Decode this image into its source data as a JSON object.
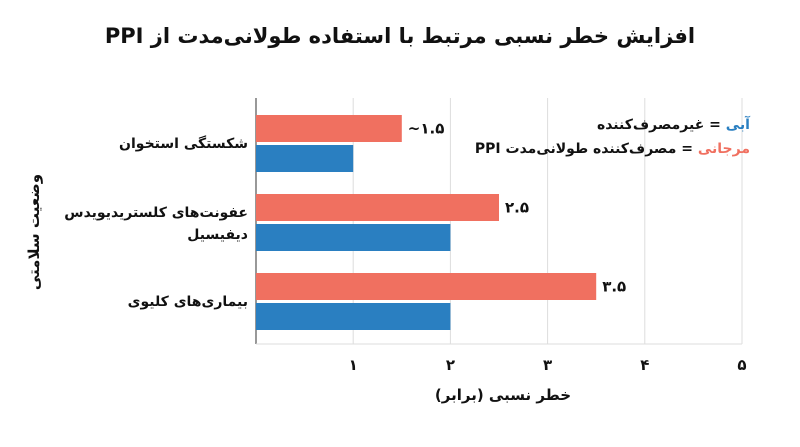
{
  "chart_data": {
    "type": "bar",
    "orientation": "horizontal",
    "title": "افزایش خطر نسبی مرتبط با استفاده طولانی‌مدت از PPI",
    "xlabel": "خطر نسبی (برابر)",
    "ylabel": "وضعیت سلامتی",
    "xlim": [
      0,
      5
    ],
    "x_ticks": [
      1,
      2,
      3,
      4,
      5
    ],
    "x_tick_labels": [
      "۱",
      "۲",
      "۳",
      "۴",
      "۵"
    ],
    "grid": true,
    "categories": [
      "شکستگی استخوان",
      "عفونت‌های کلستریدیویدس دیفیسیل",
      "بیماری‌های کلیوی"
    ],
    "series": [
      {
        "key": "coral",
        "color": "#f07060",
        "values": [
          1.5,
          2.5,
          3.5
        ],
        "data_labels": [
          "~۱.۵",
          "۲.۵",
          "۳.۵"
        ]
      },
      {
        "key": "blue",
        "color": "#2a7fc1",
        "values": [
          1,
          2,
          2
        ],
        "data_labels": [
          "",
          "",
          ""
        ]
      }
    ],
    "legend_position": "top-right",
    "legend": [
      {
        "color_word": "آبی",
        "rest": " = غیرمصرف‌کننده",
        "color": "#2a7fc1"
      },
      {
        "color_word": "مرجانی",
        "rest": " = مصرف‌کننده طولانی‌مدت PPI",
        "color": "#f07060"
      }
    ]
  }
}
